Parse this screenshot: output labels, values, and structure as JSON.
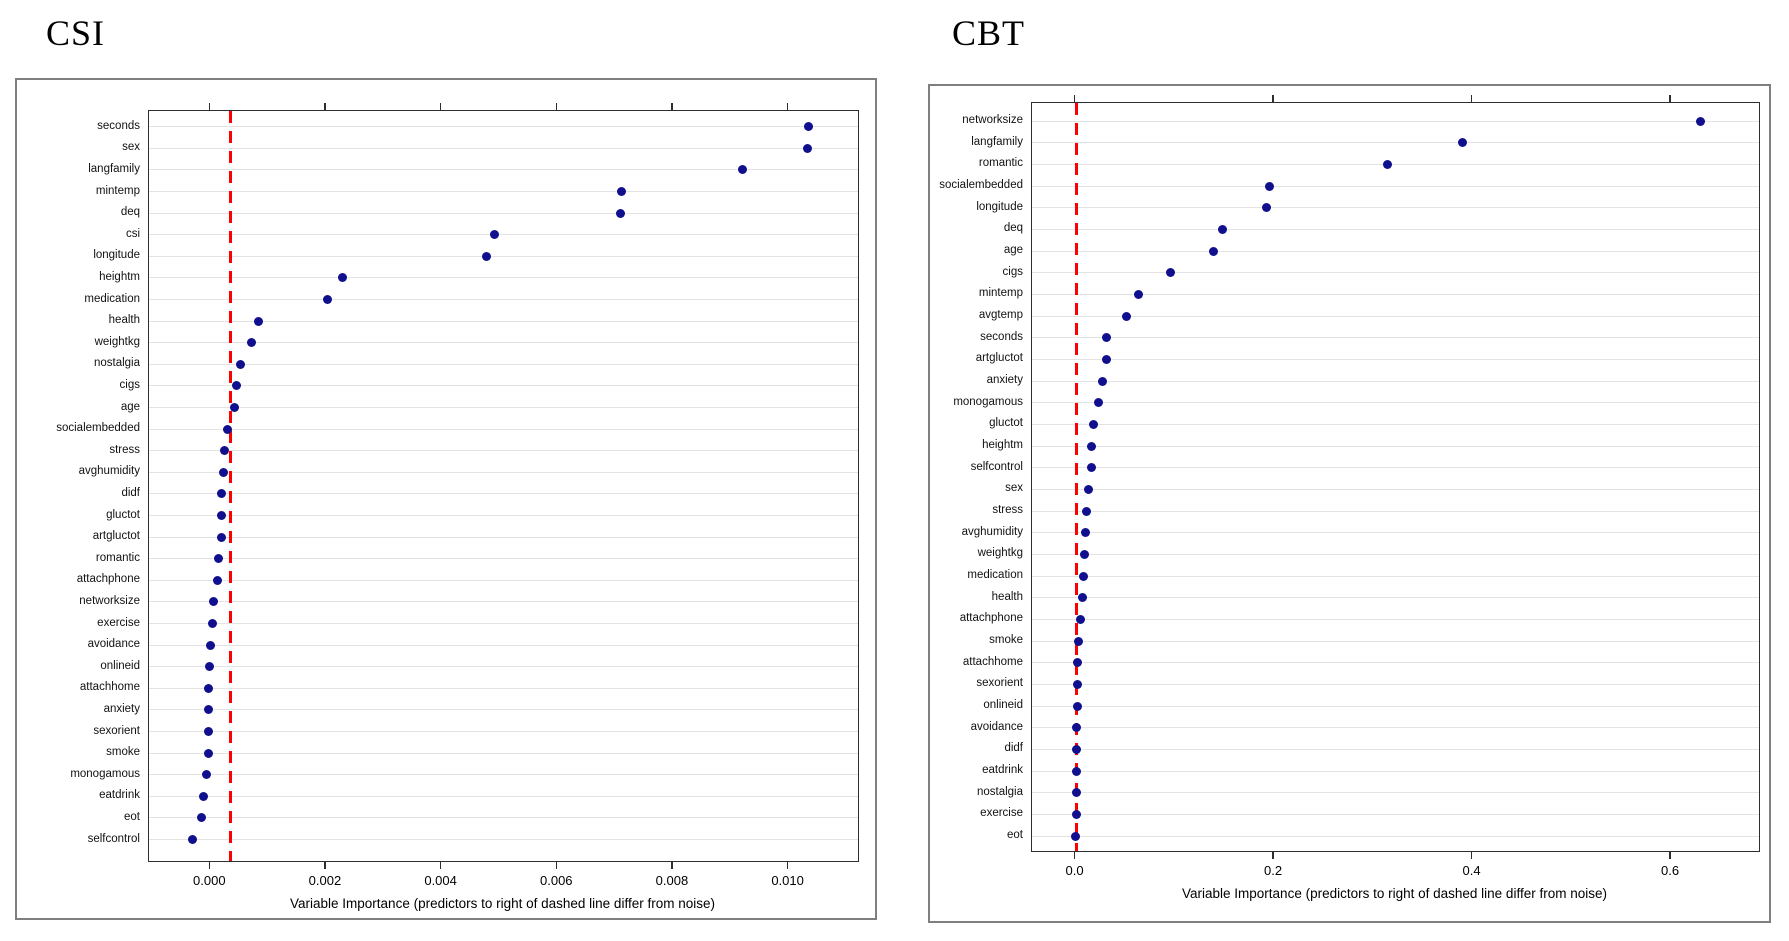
{
  "colors": {
    "dot": "#10108e",
    "dashed_line": "#ff0000",
    "gridline": "#e3e3e3",
    "plot_border": "#2e2e2e",
    "panel_border": "#7f7f7f",
    "text": "#000000",
    "background": "#ffffff"
  },
  "chart_data": [
    {
      "type": "scatter",
      "variant": "dot-plot",
      "title": "CSI",
      "xlabel": "Variable Importance (predictors to right of dashed line differ from noise)",
      "ylabel": "",
      "legend": "none",
      "grid": "horizontal",
      "x_ticks": [
        0.0,
        0.002,
        0.004,
        0.006,
        0.008,
        0.01
      ],
      "x_tick_labels": [
        "0.000",
        "0.002",
        "0.004",
        "0.006",
        "0.008",
        "0.010"
      ],
      "xlim": [
        -0.00106,
        0.0112
      ],
      "dashed_line_x": 0.00035,
      "categories": [
        "seconds",
        "sex",
        "langfamily",
        "mintemp",
        "deq",
        "csi",
        "longitude",
        "heightm",
        "medication",
        "health",
        "weightkg",
        "nostalgia",
        "cigs",
        "age",
        "socialembedded",
        "stress",
        "avghumidity",
        "didf",
        "gluctot",
        "artgluctot",
        "romantic",
        "attachphone",
        "networksize",
        "exercise",
        "avoidance",
        "onlineid",
        "attachhome",
        "anxiety",
        "sexorient",
        "smoke",
        "monogamous",
        "eatdrink",
        "eot",
        "selfcontrol"
      ],
      "values": [
        0.01035,
        0.01032,
        0.00921,
        0.00711,
        0.0071,
        0.00492,
        0.00477,
        0.00228,
        0.00203,
        0.00084,
        0.00072,
        0.00053,
        0.00046,
        0.00042,
        0.00029,
        0.00025,
        0.00023,
        0.0002,
        0.00019,
        0.00019,
        0.00014,
        0.00013,
        6e-05,
        4e-05,
        0.0,
        -1e-05,
        -3e-05,
        -3e-05,
        -3e-05,
        -3e-05,
        -6e-05,
        -0.00012,
        -0.00016,
        -0.0003
      ]
    },
    {
      "type": "scatter",
      "variant": "dot-plot",
      "title": "CBT",
      "xlabel": "Variable Importance (predictors to right of dashed line differ from noise)",
      "ylabel": "",
      "legend": "none",
      "grid": "horizontal",
      "x_ticks": [
        0.0,
        0.2,
        0.4,
        0.6
      ],
      "x_tick_labels": [
        "0.0",
        "0.2",
        "0.4",
        "0.6"
      ],
      "xlim": [
        -0.0439,
        0.6886
      ],
      "dashed_line_x": 0.0007,
      "categories": [
        "networksize",
        "langfamily",
        "romantic",
        "socialembedded",
        "longitude",
        "deq",
        "age",
        "cigs",
        "mintemp",
        "avgtemp",
        "seconds",
        "artgluctot",
        "anxiety",
        "monogamous",
        "gluctot",
        "heightm",
        "selfcontrol",
        "sex",
        "stress",
        "avghumidity",
        "weightkg",
        "medication",
        "health",
        "attachphone",
        "smoke",
        "attachhome",
        "sexorient",
        "onlineid",
        "avoidance",
        "didf",
        "eatdrink",
        "nostalgia",
        "exercise",
        "eot"
      ],
      "values": [
        0.63,
        0.39,
        0.314,
        0.195,
        0.192,
        0.148,
        0.139,
        0.096,
        0.063,
        0.051,
        0.031,
        0.031,
        0.027,
        0.023,
        0.018,
        0.016,
        0.016,
        0.013,
        0.011,
        0.01,
        0.009,
        0.008,
        0.007,
        0.005,
        0.003,
        0.002,
        0.002,
        0.002,
        0.001,
        0.001,
        0.0005,
        0.0005,
        0.0005,
        -0.0005
      ]
    }
  ]
}
